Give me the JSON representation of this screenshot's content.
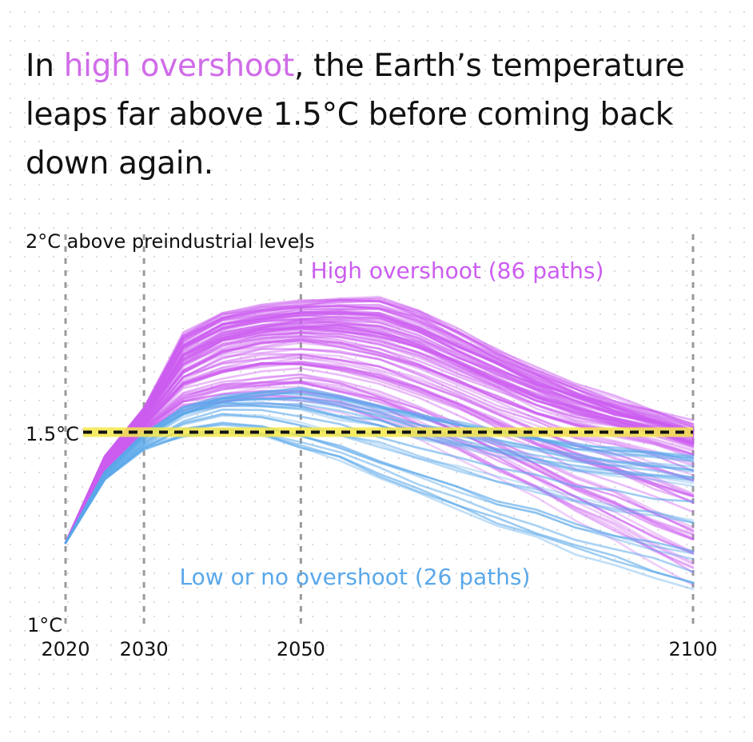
{
  "headline": {
    "prefix": "In ",
    "highlight": "high overshoot",
    "suffix": ", the Earth’s temperature leaps far above 1.5°C before coming back down again."
  },
  "colors": {
    "high_overshoot": "#cc5cf0",
    "low_overshoot": "#5aa8ea",
    "threshold_line": "#111111",
    "threshold_highlight": "#f5e84a",
    "gridline": "#9a9a9a"
  },
  "chart_data": {
    "type": "line",
    "x_ticks": [
      "2020",
      "2030",
      "2050",
      "2100"
    ],
    "y_ticks": [
      {
        "value": 1.0,
        "label": "1°C"
      },
      {
        "value": 1.5,
        "label": "1.5°C"
      },
      {
        "value": 2.0,
        "label": "2°C above preindustrial levels"
      }
    ],
    "xlim": [
      2020,
      2100
    ],
    "ylim": [
      1.0,
      2.0
    ],
    "threshold": 1.5,
    "years": [
      2020,
      2025,
      2030,
      2035,
      2040,
      2045,
      2050,
      2055,
      2060,
      2065,
      2070,
      2075,
      2080,
      2085,
      2090,
      2095,
      2100
    ],
    "series": [
      {
        "name": "High overshoot (86 paths)",
        "color": "#cc5cf0",
        "path_count": 86,
        "low_envelope": [
          1.22,
          1.4,
          1.5,
          1.55,
          1.56,
          1.57,
          1.57,
          1.55,
          1.52,
          1.48,
          1.44,
          1.39,
          1.34,
          1.28,
          1.23,
          1.17,
          1.12
        ],
        "median": [
          1.22,
          1.42,
          1.53,
          1.66,
          1.71,
          1.73,
          1.74,
          1.73,
          1.71,
          1.68,
          1.64,
          1.6,
          1.56,
          1.53,
          1.51,
          1.49,
          1.46
        ],
        "high_envelope": [
          1.22,
          1.44,
          1.56,
          1.75,
          1.8,
          1.82,
          1.83,
          1.84,
          1.84,
          1.81,
          1.76,
          1.71,
          1.66,
          1.62,
          1.58,
          1.55,
          1.52
        ]
      },
      {
        "name": "Low or no overshoot (26 paths)",
        "color": "#5aa8ea",
        "path_count": 26,
        "low_envelope": [
          1.22,
          1.38,
          1.46,
          1.49,
          1.5,
          1.49,
          1.46,
          1.43,
          1.39,
          1.35,
          1.31,
          1.27,
          1.24,
          1.2,
          1.17,
          1.14,
          1.11
        ],
        "median": [
          1.22,
          1.39,
          1.48,
          1.54,
          1.57,
          1.57,
          1.56,
          1.54,
          1.52,
          1.49,
          1.47,
          1.45,
          1.43,
          1.41,
          1.4,
          1.39,
          1.38
        ],
        "high_envelope": [
          1.22,
          1.4,
          1.5,
          1.56,
          1.59,
          1.6,
          1.61,
          1.59,
          1.57,
          1.55,
          1.53,
          1.51,
          1.49,
          1.47,
          1.46,
          1.45,
          1.44
        ]
      }
    ],
    "annotations": [
      {
        "text": "High overshoot (86 paths)",
        "series": 0
      },
      {
        "text": "Low or no overshoot (26 paths)",
        "series": 1
      }
    ]
  }
}
